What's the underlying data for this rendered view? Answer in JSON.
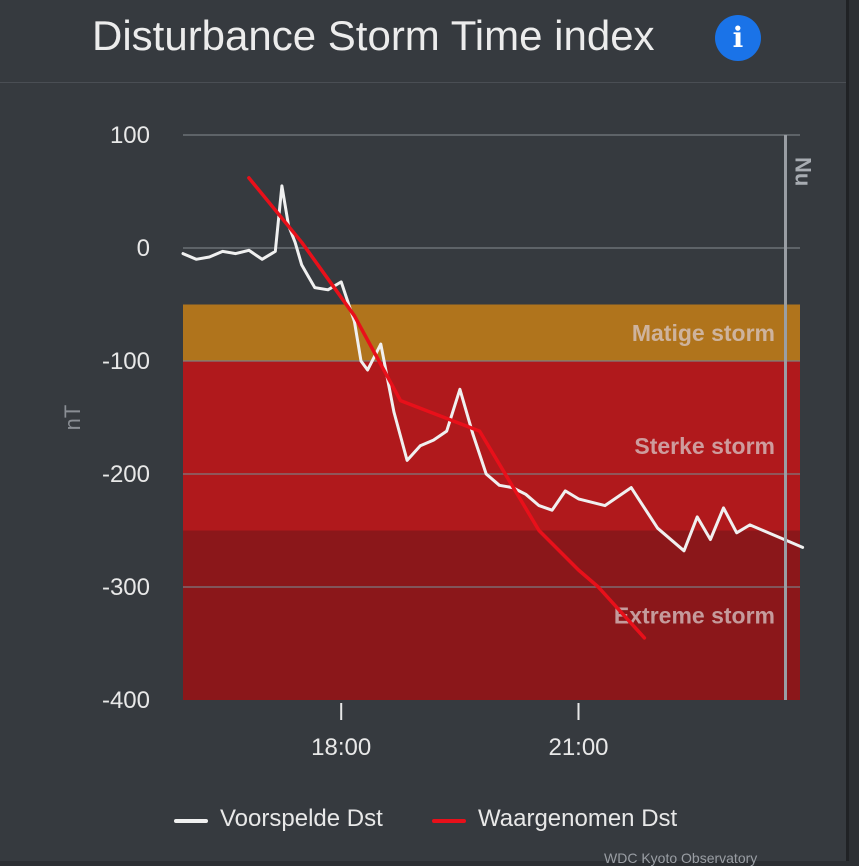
{
  "header": {
    "title": "Disturbance Storm Time index",
    "info_icon": "info-icon",
    "info_glyph": "i",
    "info_color": "#1a73e8"
  },
  "chart_data": {
    "type": "line",
    "title": "Disturbance Storm Time index",
    "ylabel": "nT",
    "xlabel": "",
    "ylim": [
      -400,
      100
    ],
    "yticks": [
      100,
      0,
      -100,
      -200,
      -300,
      -400
    ],
    "xticks": [
      "18:00",
      "21:00"
    ],
    "x_range_hours": [
      16.0,
      23.8
    ],
    "grid": true,
    "now_marker": {
      "label": "Nu",
      "time": "23:37"
    },
    "bands": [
      {
        "label": "Matige storm",
        "from": -50,
        "to": -100,
        "color": "#b0741c"
      },
      {
        "label": "Sterke storm",
        "from": -100,
        "to": -250,
        "color": "#b0191c"
      },
      {
        "label": "Extreme storm",
        "from": -250,
        "to": -400,
        "color": "#8b171a"
      }
    ],
    "series": [
      {
        "name": "Voorspelde Dst",
        "color": "#f0f0f0",
        "x": [
          "16:00",
          "16:10",
          "16:20",
          "16:30",
          "16:40",
          "16:50",
          "17:00",
          "17:10",
          "17:15",
          "17:20",
          "17:25",
          "17:30",
          "17:35",
          "17:40",
          "17:50",
          "18:00",
          "18:10",
          "18:15",
          "18:20",
          "18:30",
          "18:40",
          "18:50",
          "19:00",
          "19:10",
          "19:20",
          "19:30",
          "19:40",
          "19:50",
          "20:00",
          "20:10",
          "20:20",
          "20:30",
          "20:40",
          "20:50",
          "21:00",
          "21:20",
          "21:40",
          "22:00",
          "22:20",
          "22:30",
          "22:40",
          "22:50",
          "23:00",
          "23:10",
          "23:20",
          "23:30",
          "23:40",
          "23:50"
        ],
        "y": [
          -5,
          -10,
          -8,
          -3,
          -5,
          -2,
          -10,
          -3,
          55,
          20,
          5,
          -15,
          -25,
          -35,
          -37,
          -30,
          -65,
          -100,
          -108,
          -85,
          -145,
          -188,
          -175,
          -170,
          -162,
          -125,
          -165,
          -200,
          -210,
          -212,
          -218,
          -228,
          -232,
          -215,
          -222,
          -228,
          -212,
          -248,
          -268,
          -238,
          -258,
          -230,
          -252,
          -245,
          -250,
          -255,
          -260,
          -265
        ]
      },
      {
        "name": "Waargenomen Dst",
        "color": "#e8101a",
        "x": [
          "16:50",
          "17:30",
          "18:10",
          "18:45",
          "19:45",
          "20:30",
          "21:00",
          "21:15",
          "21:50"
        ],
        "y": [
          62,
          5,
          -60,
          -135,
          -162,
          -250,
          -285,
          -300,
          -345
        ]
      }
    ]
  },
  "legend": [
    {
      "label": "Voorspelde Dst",
      "color": "#f0f0f0"
    },
    {
      "label": "Waargenomen Dst",
      "color": "#e8101a"
    }
  ],
  "credit": "WDC Kyoto Observatory"
}
